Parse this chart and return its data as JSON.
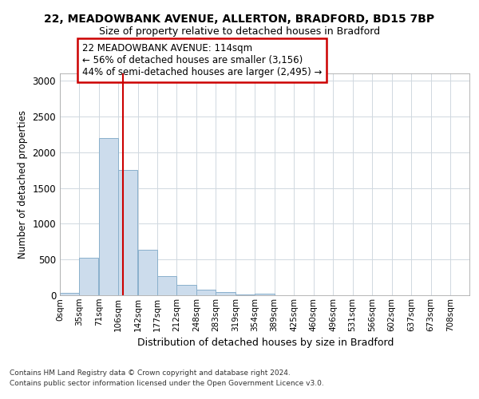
{
  "title1": "22, MEADOWBANK AVENUE, ALLERTON, BRADFORD, BD15 7BP",
  "title2": "Size of property relative to detached houses in Bradford",
  "xlabel": "Distribution of detached houses by size in Bradford",
  "ylabel": "Number of detached properties",
  "bin_labels": [
    "0sqm",
    "35sqm",
    "71sqm",
    "106sqm",
    "142sqm",
    "177sqm",
    "212sqm",
    "248sqm",
    "283sqm",
    "319sqm",
    "354sqm",
    "389sqm",
    "425sqm",
    "460sqm",
    "496sqm",
    "531sqm",
    "566sqm",
    "602sqm",
    "637sqm",
    "673sqm",
    "708sqm"
  ],
  "bin_edges": [
    0,
    35,
    71,
    106,
    142,
    177,
    212,
    248,
    283,
    319,
    354,
    389,
    425,
    460,
    496,
    531,
    566,
    602,
    637,
    673,
    708,
    743
  ],
  "bar_values": [
    30,
    520,
    2200,
    1750,
    640,
    265,
    140,
    75,
    40,
    10,
    25,
    5,
    5,
    5,
    0,
    0,
    0,
    0,
    0,
    0,
    0
  ],
  "bar_color": "#ccdcec",
  "bar_edge_color": "#8ab0cc",
  "vline_x": 114,
  "vline_color": "#cc0000",
  "annotation_text": "22 MEADOWBANK AVENUE: 114sqm\n← 56% of detached houses are smaller (3,156)\n44% of semi-detached houses are larger (2,495) →",
  "annotation_box_color": "#cc0000",
  "ylim": [
    0,
    3100
  ],
  "yticks": [
    0,
    500,
    1000,
    1500,
    2000,
    2500,
    3000
  ],
  "footer1": "Contains HM Land Registry data © Crown copyright and database right 2024.",
  "footer2": "Contains public sector information licensed under the Open Government Licence v3.0.",
  "bg_color": "#ffffff",
  "grid_color": "#d0d8e0"
}
